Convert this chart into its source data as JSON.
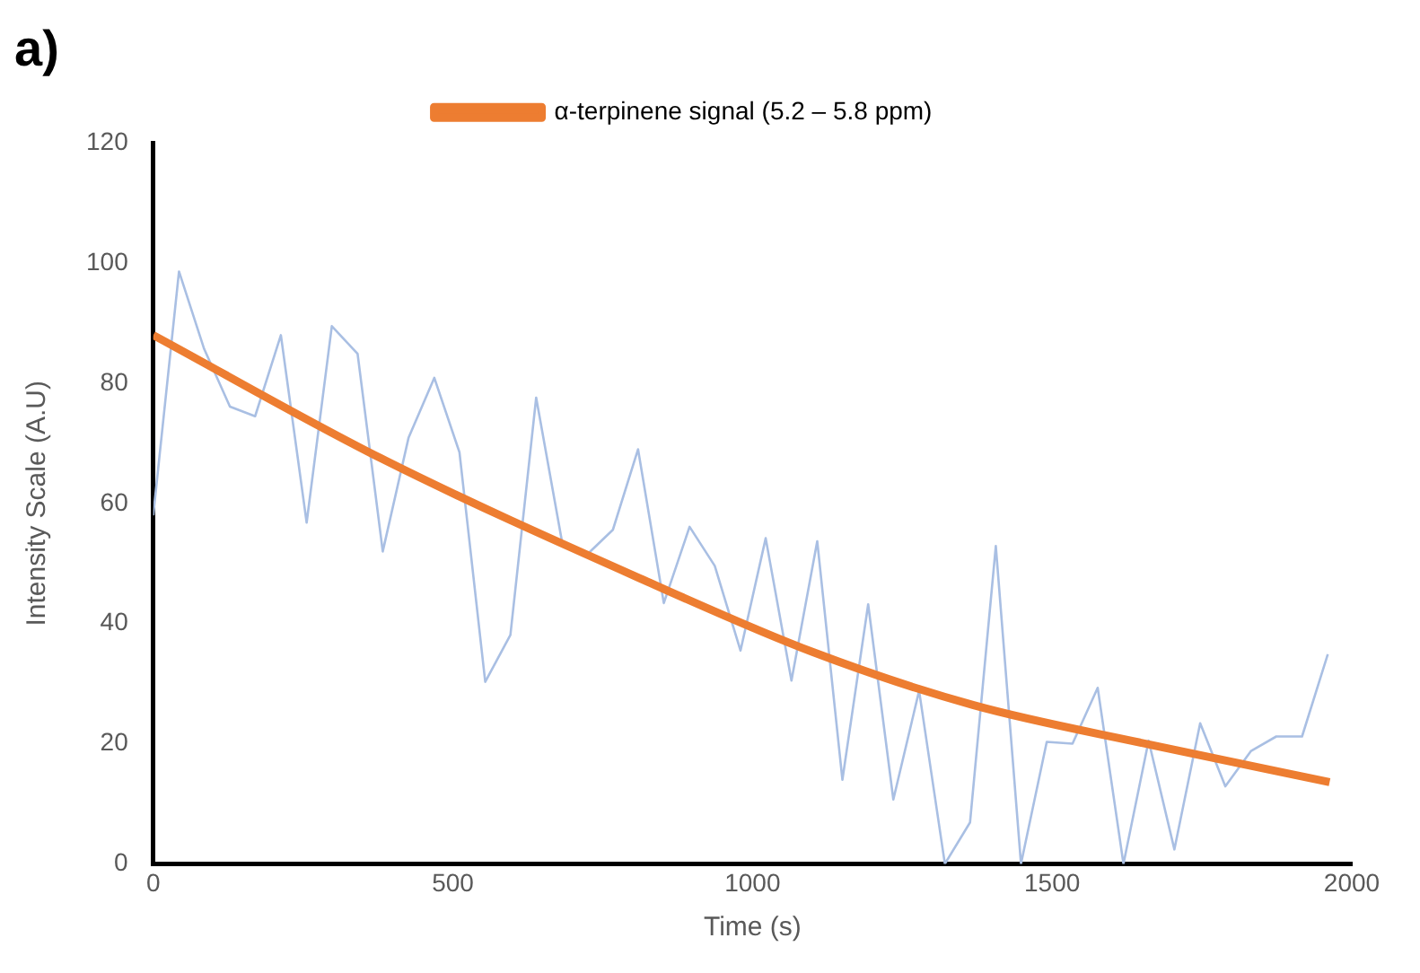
{
  "chart_data": {
    "type": "line",
    "title": "a)",
    "xlabel": "Time (s)",
    "ylabel": "Intensity Scale (A.U)",
    "xlim": [
      0,
      2000
    ],
    "xticks": [
      0,
      500,
      1000,
      1500,
      2000
    ],
    "ylim": [
      0,
      120
    ],
    "yticks": [
      0,
      20,
      40,
      60,
      80,
      100,
      120
    ],
    "grid": false,
    "legend": "top",
    "marker": "none",
    "line_style": "solid",
    "series": [
      {
        "color": "#a9bfe3",
        "x": [
          0,
          43,
          85,
          128,
          170,
          213,
          256,
          298,
          341,
          383,
          426,
          469,
          511,
          554,
          596,
          639,
          682,
          724,
          767,
          809,
          852,
          895,
          937,
          980,
          1022,
          1065,
          1108,
          1150,
          1193,
          1235,
          1278,
          1321,
          1363,
          1406,
          1448,
          1491,
          1534,
          1576,
          1619,
          1661,
          1704,
          1747,
          1789,
          1832,
          1874,
          1917,
          1960
        ],
        "values": [
          58,
          98.6,
          85.7,
          76.1,
          74.5,
          88,
          56.8,
          89.5,
          84.9,
          52,
          70.9,
          80.9,
          68.5,
          30.3,
          38.1,
          77.6,
          53.7,
          51.5,
          55.6,
          69,
          43.4,
          56.1,
          49.6,
          35.5,
          54.2,
          30.5,
          53.7,
          14,
          43.2,
          10.7,
          28.8,
          0,
          6.9,
          52.9,
          0,
          20.3,
          20,
          29.3,
          0,
          20.5,
          2.4,
          23.4,
          12.9,
          18.8,
          21.2,
          21.2,
          34.9
        ]
      },
      {
        "name": "α-terpinene signal (5.2 – 5.8 ppm)",
        "color": "#ed7d31",
        "x": [
          0,
          380,
          824,
          1102,
          1369,
          1665,
          1963
        ],
        "values": [
          88,
          67.5,
          47,
          35.2,
          26.4,
          19.8,
          13.6
        ]
      }
    ]
  }
}
